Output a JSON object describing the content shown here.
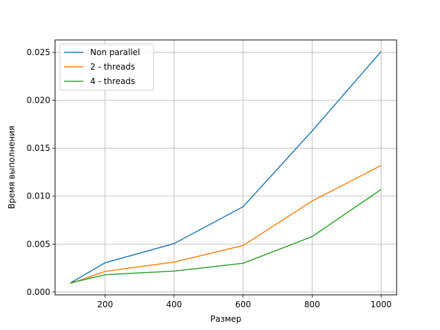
{
  "chart_data": {
    "type": "line",
    "xlabel": "Размер",
    "ylabel": "Время выполнения",
    "x": [
      100,
      200,
      400,
      600,
      800,
      1000
    ],
    "xlim": [
      55,
      1045
    ],
    "ylim": [
      -0.0003,
      0.0263
    ],
    "x_ticks": [
      "200",
      "400",
      "600",
      "800",
      "1000"
    ],
    "y_ticks": [
      "0.000",
      "0.005",
      "0.010",
      "0.015",
      "0.020",
      "0.025"
    ],
    "grid": true,
    "legend_position": "top-left",
    "series": [
      {
        "name": "Non parallel",
        "color": "#1f77b4",
        "values": [
          0.00095,
          0.00305,
          0.00505,
          0.0089,
          0.0168,
          0.0251
        ]
      },
      {
        "name": "2 - threads",
        "color": "#ff7f0e",
        "values": [
          0.00088,
          0.00215,
          0.00312,
          0.00485,
          0.0095,
          0.0132
        ]
      },
      {
        "name": "4 - threads",
        "color": "#2ca02c",
        "values": [
          0.00095,
          0.0018,
          0.00218,
          0.003,
          0.00578,
          0.0107
        ]
      }
    ]
  }
}
